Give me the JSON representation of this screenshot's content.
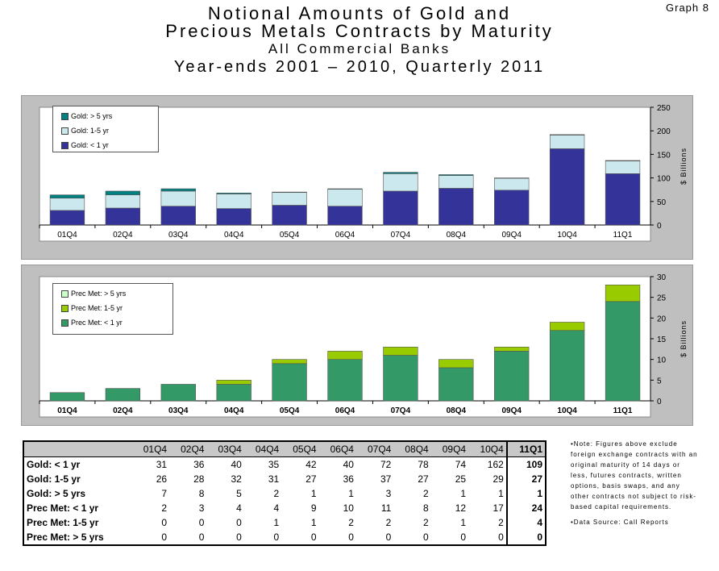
{
  "graph_label": "Graph 8",
  "titles": {
    "line1": "Notional Amounts of Gold and",
    "line2": "Precious Metals Contracts by Maturity",
    "line3": "All Commercial Banks",
    "line4": "Year-ends 2001 – 2010, Quarterly 2011"
  },
  "chart_data": [
    {
      "type": "bar",
      "stacked": true,
      "categories": [
        "01Q4",
        "02Q4",
        "03Q4",
        "04Q4",
        "05Q4",
        "06Q4",
        "07Q4",
        "08Q4",
        "09Q4",
        "10Q4",
        "11Q1"
      ],
      "series": [
        {
          "name": "Gold: < 1 yr",
          "color": "#333399",
          "values": [
            31,
            36,
            40,
            35,
            42,
            40,
            72,
            78,
            74,
            162,
            109
          ]
        },
        {
          "name": "Gold: 1-5 yr",
          "color": "#cce8ef",
          "values": [
            26,
            28,
            32,
            31,
            27,
            36,
            37,
            27,
            25,
            29,
            27
          ]
        },
        {
          "name": "Gold: > 5 yrs",
          "color": "#008080",
          "values": [
            7,
            8,
            5,
            2,
            1,
            1,
            3,
            2,
            1,
            1,
            1
          ]
        }
      ],
      "ylabel": "$ Billions",
      "ylim": [
        0,
        250
      ],
      "yticks": [
        0,
        50,
        100,
        150,
        200,
        250
      ],
      "legend_order": [
        "Gold: > 5 yrs",
        "Gold: 1-5 yr",
        "Gold: < 1 yr"
      ],
      "legend_position": "top-left"
    },
    {
      "type": "bar",
      "stacked": true,
      "categories": [
        "01Q4",
        "02Q4",
        "03Q4",
        "04Q4",
        "05Q4",
        "06Q4",
        "07Q4",
        "08Q4",
        "09Q4",
        "10Q4",
        "11Q1"
      ],
      "series": [
        {
          "name": "Prec Met: < 1 yr",
          "color": "#339966",
          "values": [
            2,
            3,
            4,
            4,
            9,
            10,
            11,
            8,
            12,
            17,
            24
          ]
        },
        {
          "name": "Prec Met: 1-5 yr",
          "color": "#99cc00",
          "values": [
            0,
            0,
            0,
            1,
            1,
            2,
            2,
            2,
            1,
            2,
            4
          ]
        },
        {
          "name": "Prec Met: > 5 yrs",
          "color": "#ccffcc",
          "values": [
            0,
            0,
            0,
            0,
            0,
            0,
            0,
            0,
            0,
            0,
            0
          ]
        }
      ],
      "ylabel": "$ Billions",
      "ylim": [
        0,
        30
      ],
      "yticks": [
        0,
        5,
        10,
        15,
        20,
        25,
        30
      ],
      "legend_order": [
        "Prec Met: > 5 yrs",
        "Prec Met: 1-5 yr",
        "Prec Met: < 1 yr"
      ],
      "legend_position": "top-left"
    }
  ],
  "table": {
    "header": [
      "01Q4",
      "02Q4",
      "03Q4",
      "04Q4",
      "05Q4",
      "06Q4",
      "07Q4",
      "08Q4",
      "09Q4",
      "10Q4",
      "11Q1"
    ],
    "rows": [
      {
        "label": "Gold: < 1 yr",
        "values": [
          31,
          36,
          40,
          35,
          42,
          40,
          72,
          78,
          74,
          162,
          109
        ]
      },
      {
        "label": "Gold: 1-5 yr",
        "values": [
          26,
          28,
          32,
          31,
          27,
          36,
          37,
          27,
          25,
          29,
          27
        ]
      },
      {
        "label": "Gold: > 5 yrs",
        "values": [
          7,
          8,
          5,
          2,
          1,
          1,
          3,
          2,
          1,
          1,
          1
        ]
      },
      {
        "label": "Prec Met: < 1 yr",
        "values": [
          2,
          3,
          4,
          4,
          9,
          10,
          11,
          8,
          12,
          17,
          24
        ]
      },
      {
        "label": "Prec Met: 1-5 yr",
        "values": [
          0,
          0,
          0,
          1,
          1,
          2,
          2,
          2,
          1,
          2,
          4
        ]
      },
      {
        "label": "Prec Met: > 5 yrs",
        "values": [
          0,
          0,
          0,
          0,
          0,
          0,
          0,
          0,
          0,
          0,
          0
        ]
      }
    ]
  },
  "notes": {
    "note1": "•Note: Figures above exclude foreign exchange contracts with an original maturity of 14 days or less, futures contracts, written options, basis swaps, and any other contracts not subject to risk-based capital requirements.",
    "note2": "•Data Source: Call Reports"
  }
}
